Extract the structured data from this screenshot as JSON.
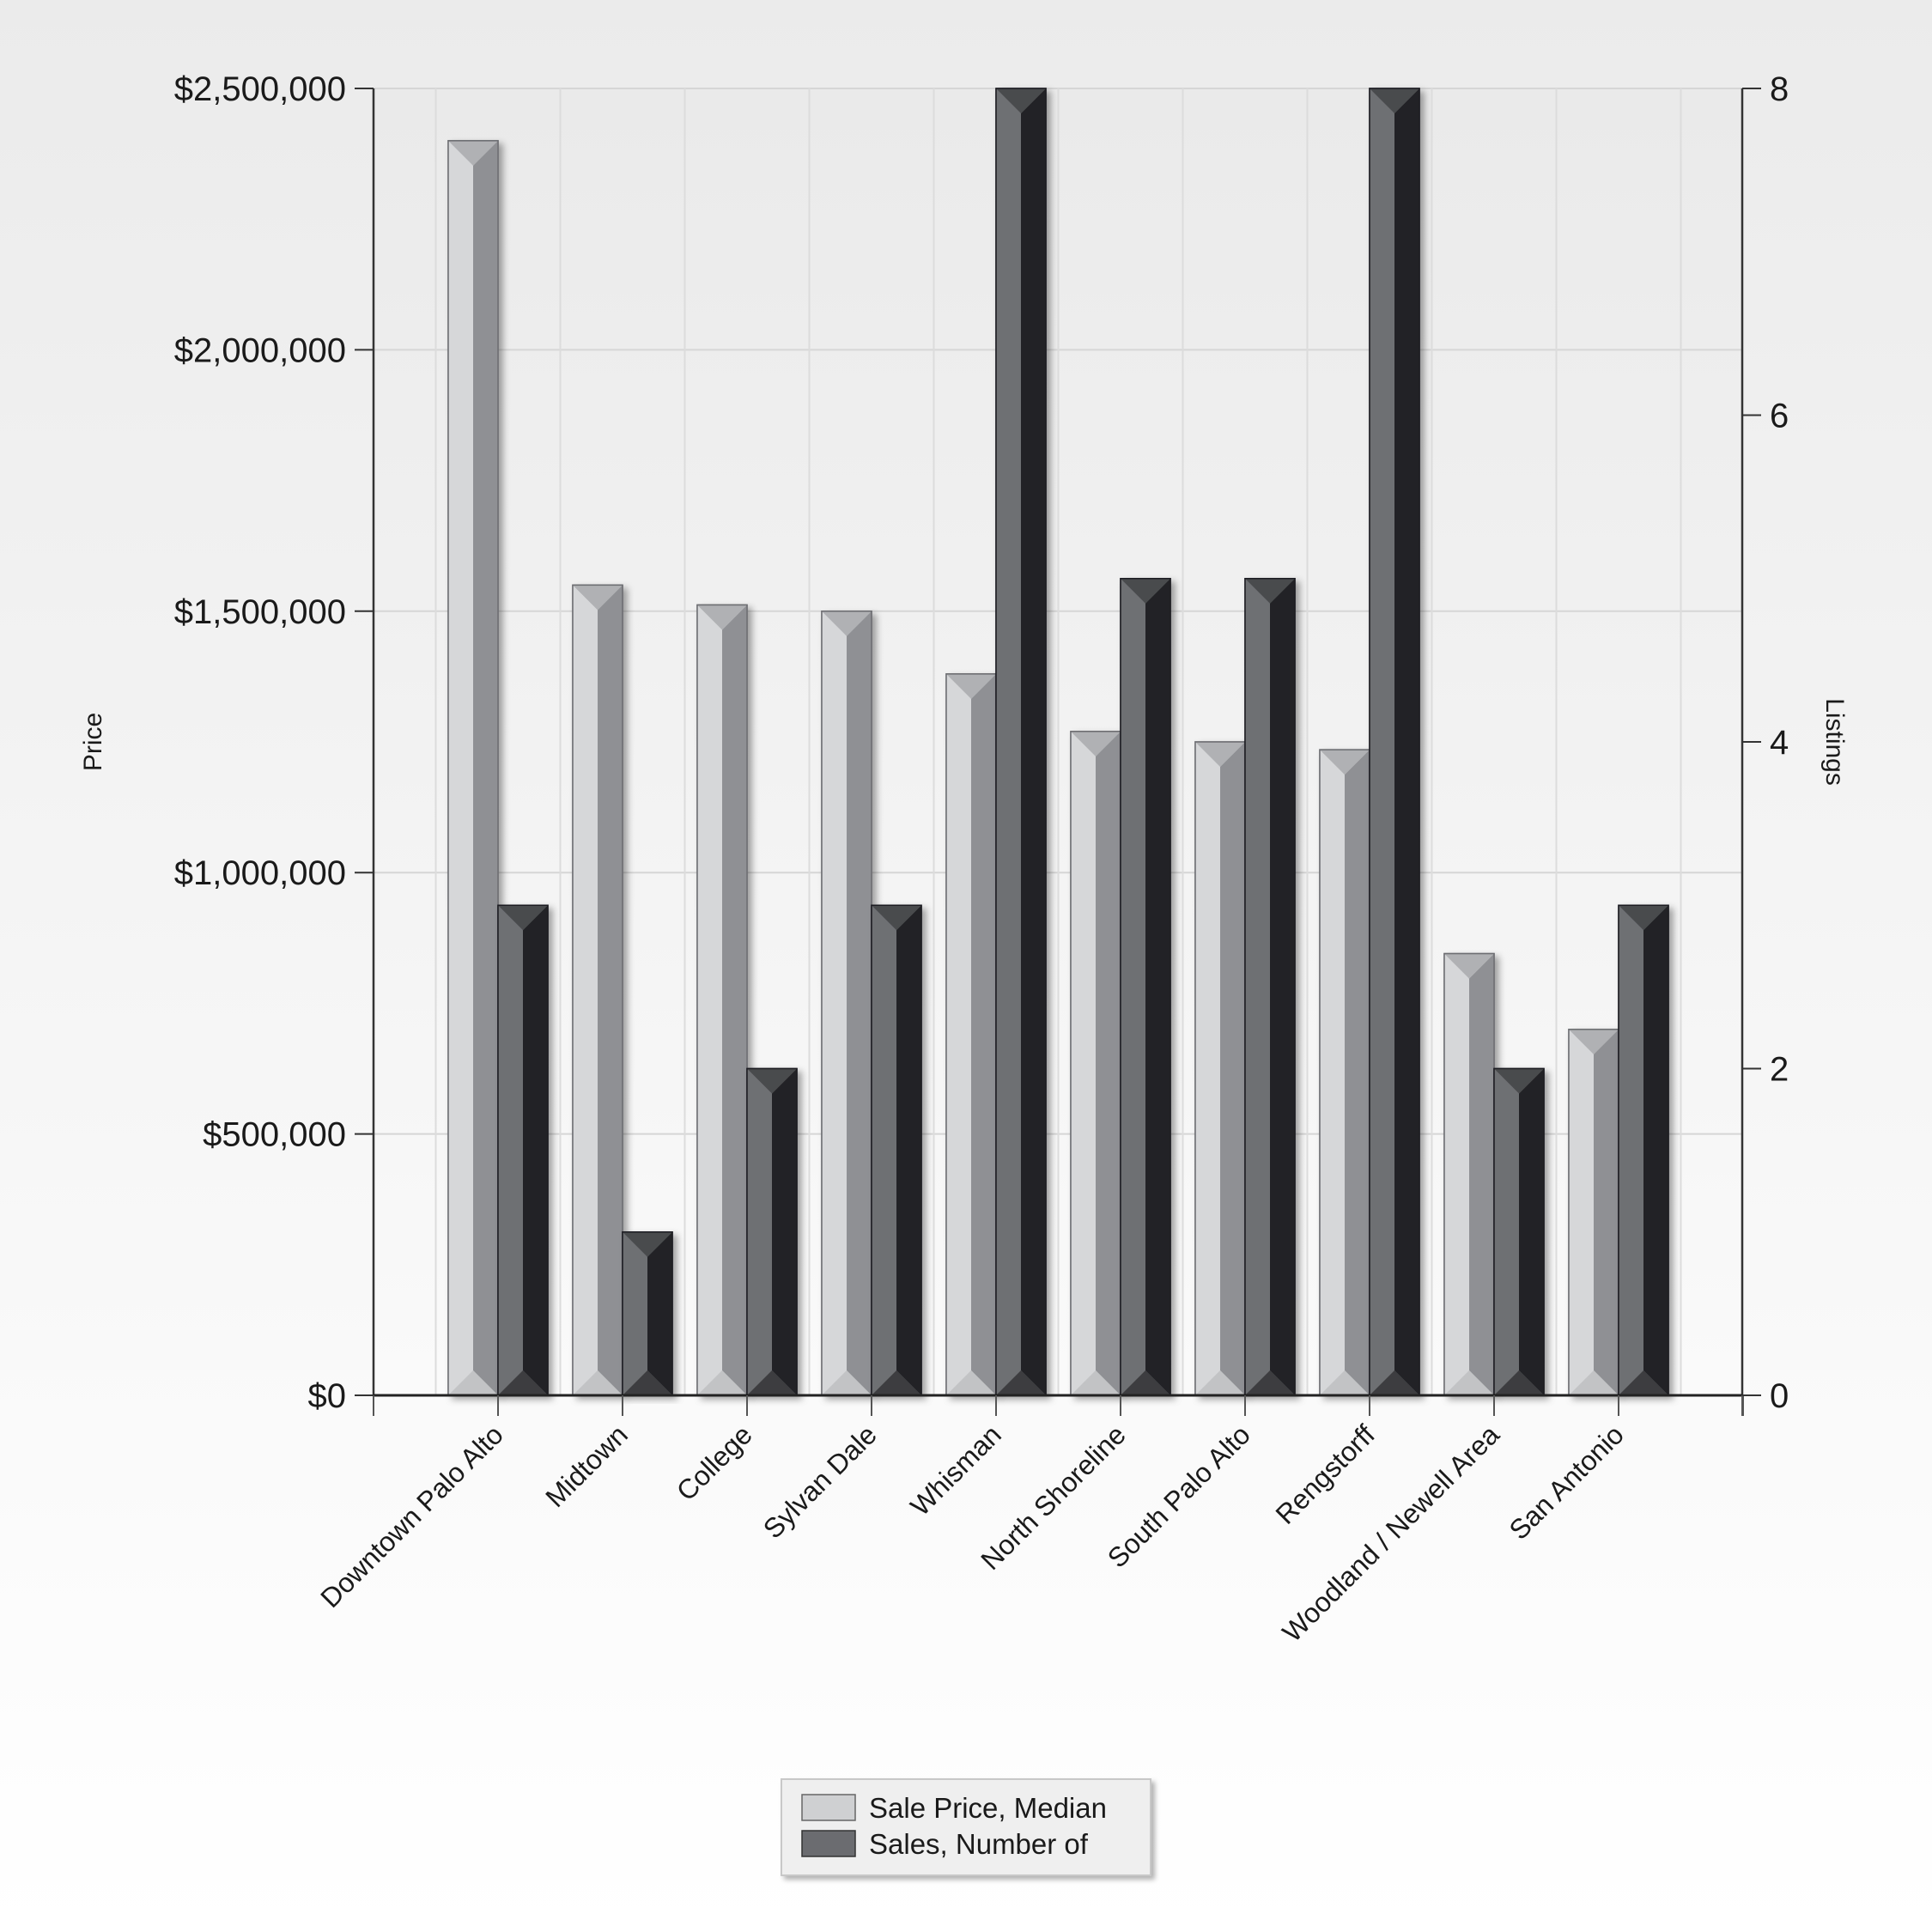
{
  "chart_data": {
    "type": "bar",
    "categories": [
      "Downtown Palo Alto",
      "Midtown",
      "College",
      "Sylvan Dale",
      "Whisman",
      "North Shoreline",
      "South Palo Alto",
      "Rengstorff",
      "Woodland / Newell Area",
      "San Antonio"
    ],
    "series": [
      {
        "name": "Sale Price, Median",
        "axis": "left",
        "values": [
          2400000,
          1550000,
          1512000,
          1500000,
          1380000,
          1270000,
          1250000,
          1235000,
          845000,
          700000
        ]
      },
      {
        "name": "Sales, Number of",
        "axis": "right",
        "values": [
          3,
          1,
          2,
          3,
          8,
          5,
          5,
          8,
          2,
          3
        ]
      }
    ],
    "ylabel": "Price",
    "y2label": "Listings",
    "ylim": [
      0,
      2500000
    ],
    "y2lim": [
      0,
      8
    ],
    "yticks": [
      "$0",
      "$500,000",
      "$1,000,000",
      "$1,500,000",
      "$2,000,000",
      "$2,500,000"
    ],
    "y2ticks": [
      "0",
      "2",
      "4",
      "6",
      "8"
    ],
    "grid": true,
    "legend": "bottom-center",
    "colors": {
      "series1": "#cfd0d2",
      "series2": "#6b6c70"
    }
  }
}
